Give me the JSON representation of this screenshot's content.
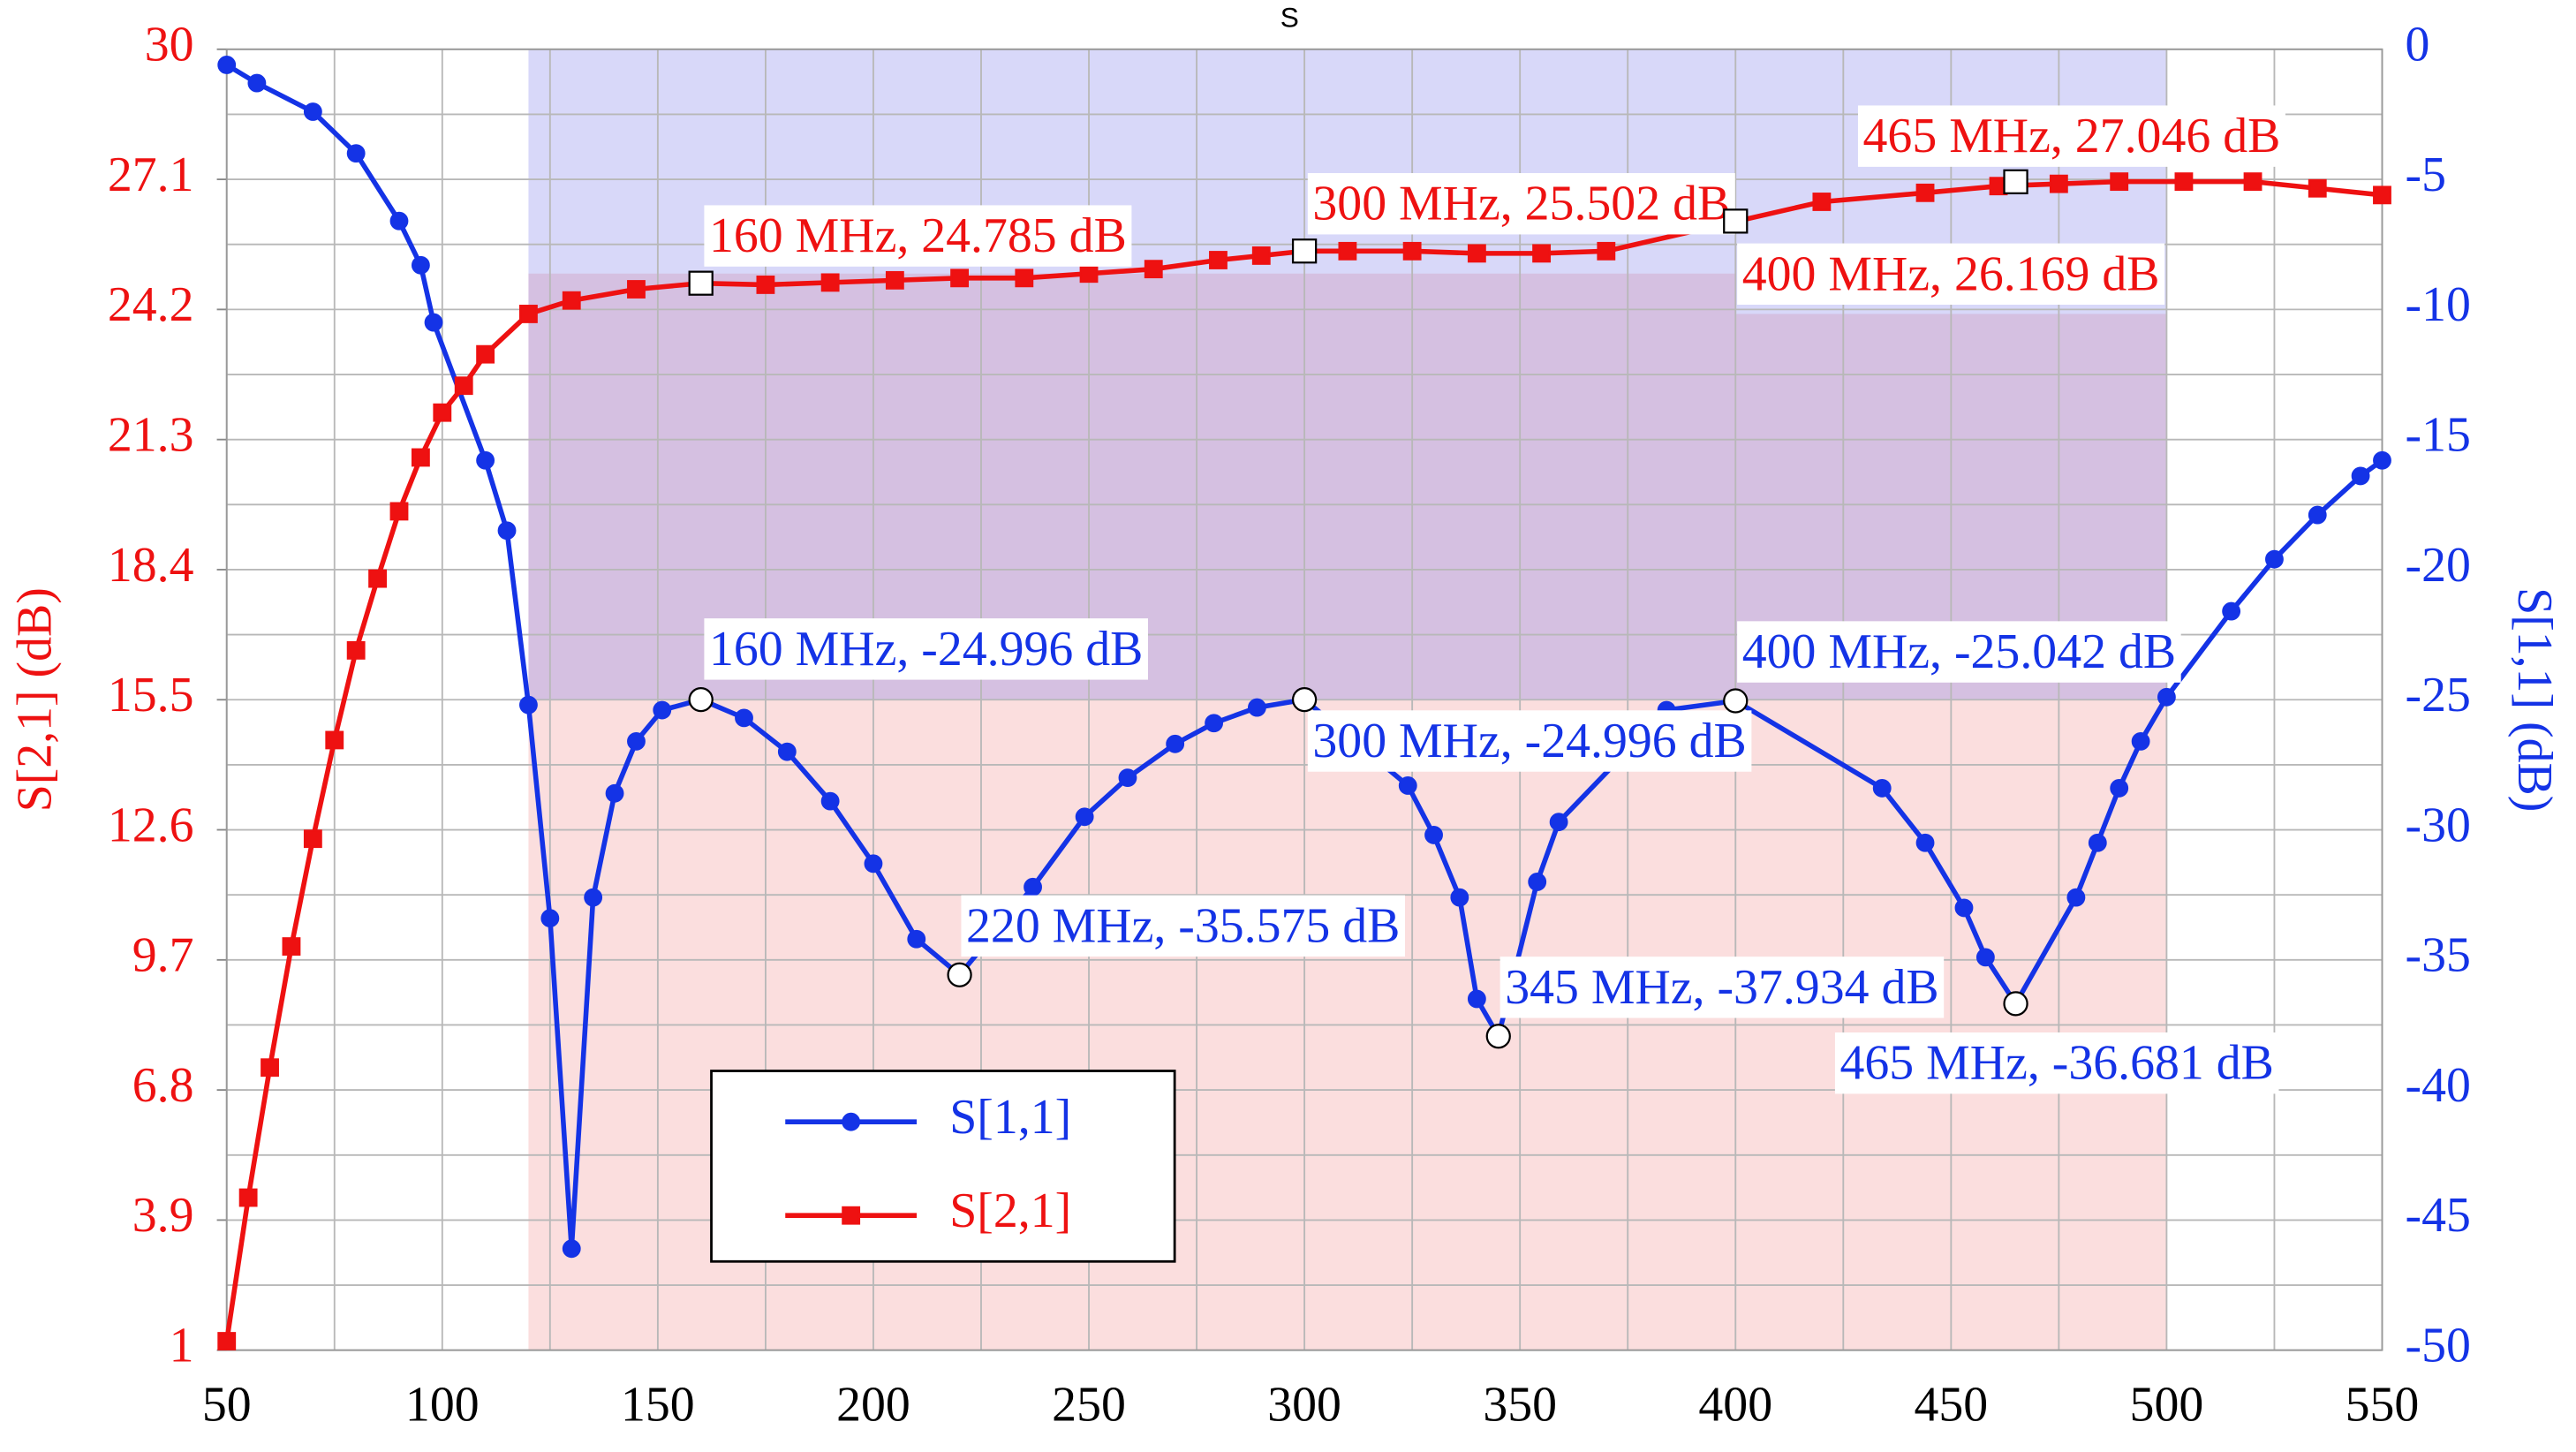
{
  "chart_data": {
    "type": "line",
    "title": "S",
    "ylabel": "S[2,1] (dB)",
    "y2label": "S[1,1] (dB)",
    "xlim": [
      50,
      550
    ],
    "xticks": [
      50,
      100,
      150,
      200,
      250,
      300,
      350,
      400,
      450,
      500,
      550
    ],
    "ylim": [
      1,
      30
    ],
    "yticks": [
      1,
      3.9,
      6.8,
      9.7,
      12.6,
      15.5,
      18.4,
      21.3,
      24.2,
      27.1,
      30
    ],
    "y2lim": [
      -50,
      0
    ],
    "y2ticks": [
      -50,
      -45,
      -40,
      -35,
      -30,
      -25,
      -20,
      -15,
      -10,
      -5,
      0
    ],
    "grid": true,
    "series": [
      {
        "name": "S[1,1]",
        "color": "#1433e6",
        "axis": "y2",
        "marker": "circle",
        "x": [
          50,
          57,
          70,
          80,
          90,
          95,
          98,
          110,
          115,
          120,
          125,
          130,
          135,
          140,
          145,
          151,
          160,
          170,
          180,
          190,
          200,
          210,
          220,
          237,
          249,
          259,
          270,
          279,
          289,
          300,
          324,
          330,
          336,
          340,
          345,
          354,
          359,
          384,
          400,
          434,
          444,
          453,
          458,
          465,
          479,
          484,
          489,
          494,
          500,
          515,
          525,
          535,
          545,
          550
        ],
        "values": [
          -0.6,
          -1.3,
          -2.4,
          -4.0,
          -6.6,
          -8.3,
          -10.5,
          -15.8,
          -18.5,
          -25.2,
          -33.4,
          -46.1,
          -32.6,
          -28.6,
          -26.6,
          -25.4,
          -24.996,
          -25.7,
          -27.0,
          -28.9,
          -31.3,
          -34.2,
          -35.575,
          -32.2,
          -29.5,
          -28.0,
          -26.7,
          -25.9,
          -25.3,
          -24.996,
          -28.3,
          -30.2,
          -32.6,
          -36.5,
          -37.934,
          -32.0,
          -29.7,
          -25.4,
          -25.042,
          -28.4,
          -30.5,
          -33.0,
          -34.9,
          -36.681,
          -32.6,
          -30.5,
          -28.4,
          -26.6,
          -24.9,
          -21.6,
          -19.6,
          -17.9,
          -16.4,
          -15.8
        ]
      },
      {
        "name": "S[2,1]",
        "color": "#ee1111",
        "axis": "y",
        "marker": "square",
        "x": [
          50,
          55,
          60,
          65,
          70,
          75,
          80,
          85,
          90,
          95,
          100,
          105,
          110,
          120,
          130,
          145,
          160,
          175,
          190,
          205,
          220,
          235,
          250,
          265,
          280,
          290,
          300,
          310,
          325,
          340,
          355,
          370,
          420,
          444,
          461,
          475,
          489,
          504,
          520,
          535,
          550
        ],
        "values": [
          1.2,
          4.4,
          7.3,
          10.0,
          12.4,
          14.6,
          16.6,
          18.2,
          19.7,
          20.9,
          21.9,
          22.5,
          23.2,
          24.1,
          24.4,
          24.65,
          24.785,
          24.75,
          24.8,
          24.85,
          24.9,
          24.9,
          25.0,
          25.1,
          25.3,
          25.4,
          25.502,
          25.5,
          25.5,
          25.45,
          25.45,
          25.5,
          26.6,
          26.8,
          26.95,
          27.0,
          27.05,
          27.05,
          27.05,
          26.9,
          26.75
        ]
      }
    ],
    "bands": [
      {
        "axis": "y",
        "x": [
          120,
          400
        ],
        "y": [
          1,
          25.0
        ],
        "color": "#f08a8a"
      },
      {
        "axis": "y",
        "x": [
          400,
          500
        ],
        "y": [
          1,
          24.1
        ],
        "color": "#f08a8a"
      },
      {
        "axis": "y2",
        "x": [
          120,
          500
        ],
        "y": [
          -25,
          0
        ],
        "color": "#7272e8"
      }
    ],
    "annotations": [
      {
        "label": "160 MHz, 24.785 dB",
        "x": 160,
        "y": 24.785,
        "axis": "y"
      },
      {
        "label": "300 MHz, 25.502 dB",
        "x": 300,
        "y": 25.502,
        "axis": "y"
      },
      {
        "label": "400 MHz, 26.169 dB",
        "x": 400,
        "y": 26.169,
        "axis": "y"
      },
      {
        "label": "465 MHz, 27.046 dB",
        "x": 465,
        "y": 27.046,
        "axis": "y"
      },
      {
        "label": "160 MHz, -24.996 dB",
        "x": 160,
        "y": -24.996,
        "axis": "y2"
      },
      {
        "label": "300 MHz, -24.996 dB",
        "x": 300,
        "y": -24.996,
        "axis": "y2"
      },
      {
        "label": "400 MHz, -25.042 dB",
        "x": 400,
        "y": -25.042,
        "axis": "y2"
      },
      {
        "label": "220 MHz, -35.575 dB",
        "x": 220,
        "y": -35.575,
        "axis": "y2"
      },
      {
        "label": "345 MHz, -37.934 dB",
        "x": 345,
        "y": -37.934,
        "axis": "y2"
      },
      {
        "label": "465 MHz, -36.681 dB",
        "x": 465,
        "y": -36.681,
        "axis": "y2"
      }
    ]
  }
}
